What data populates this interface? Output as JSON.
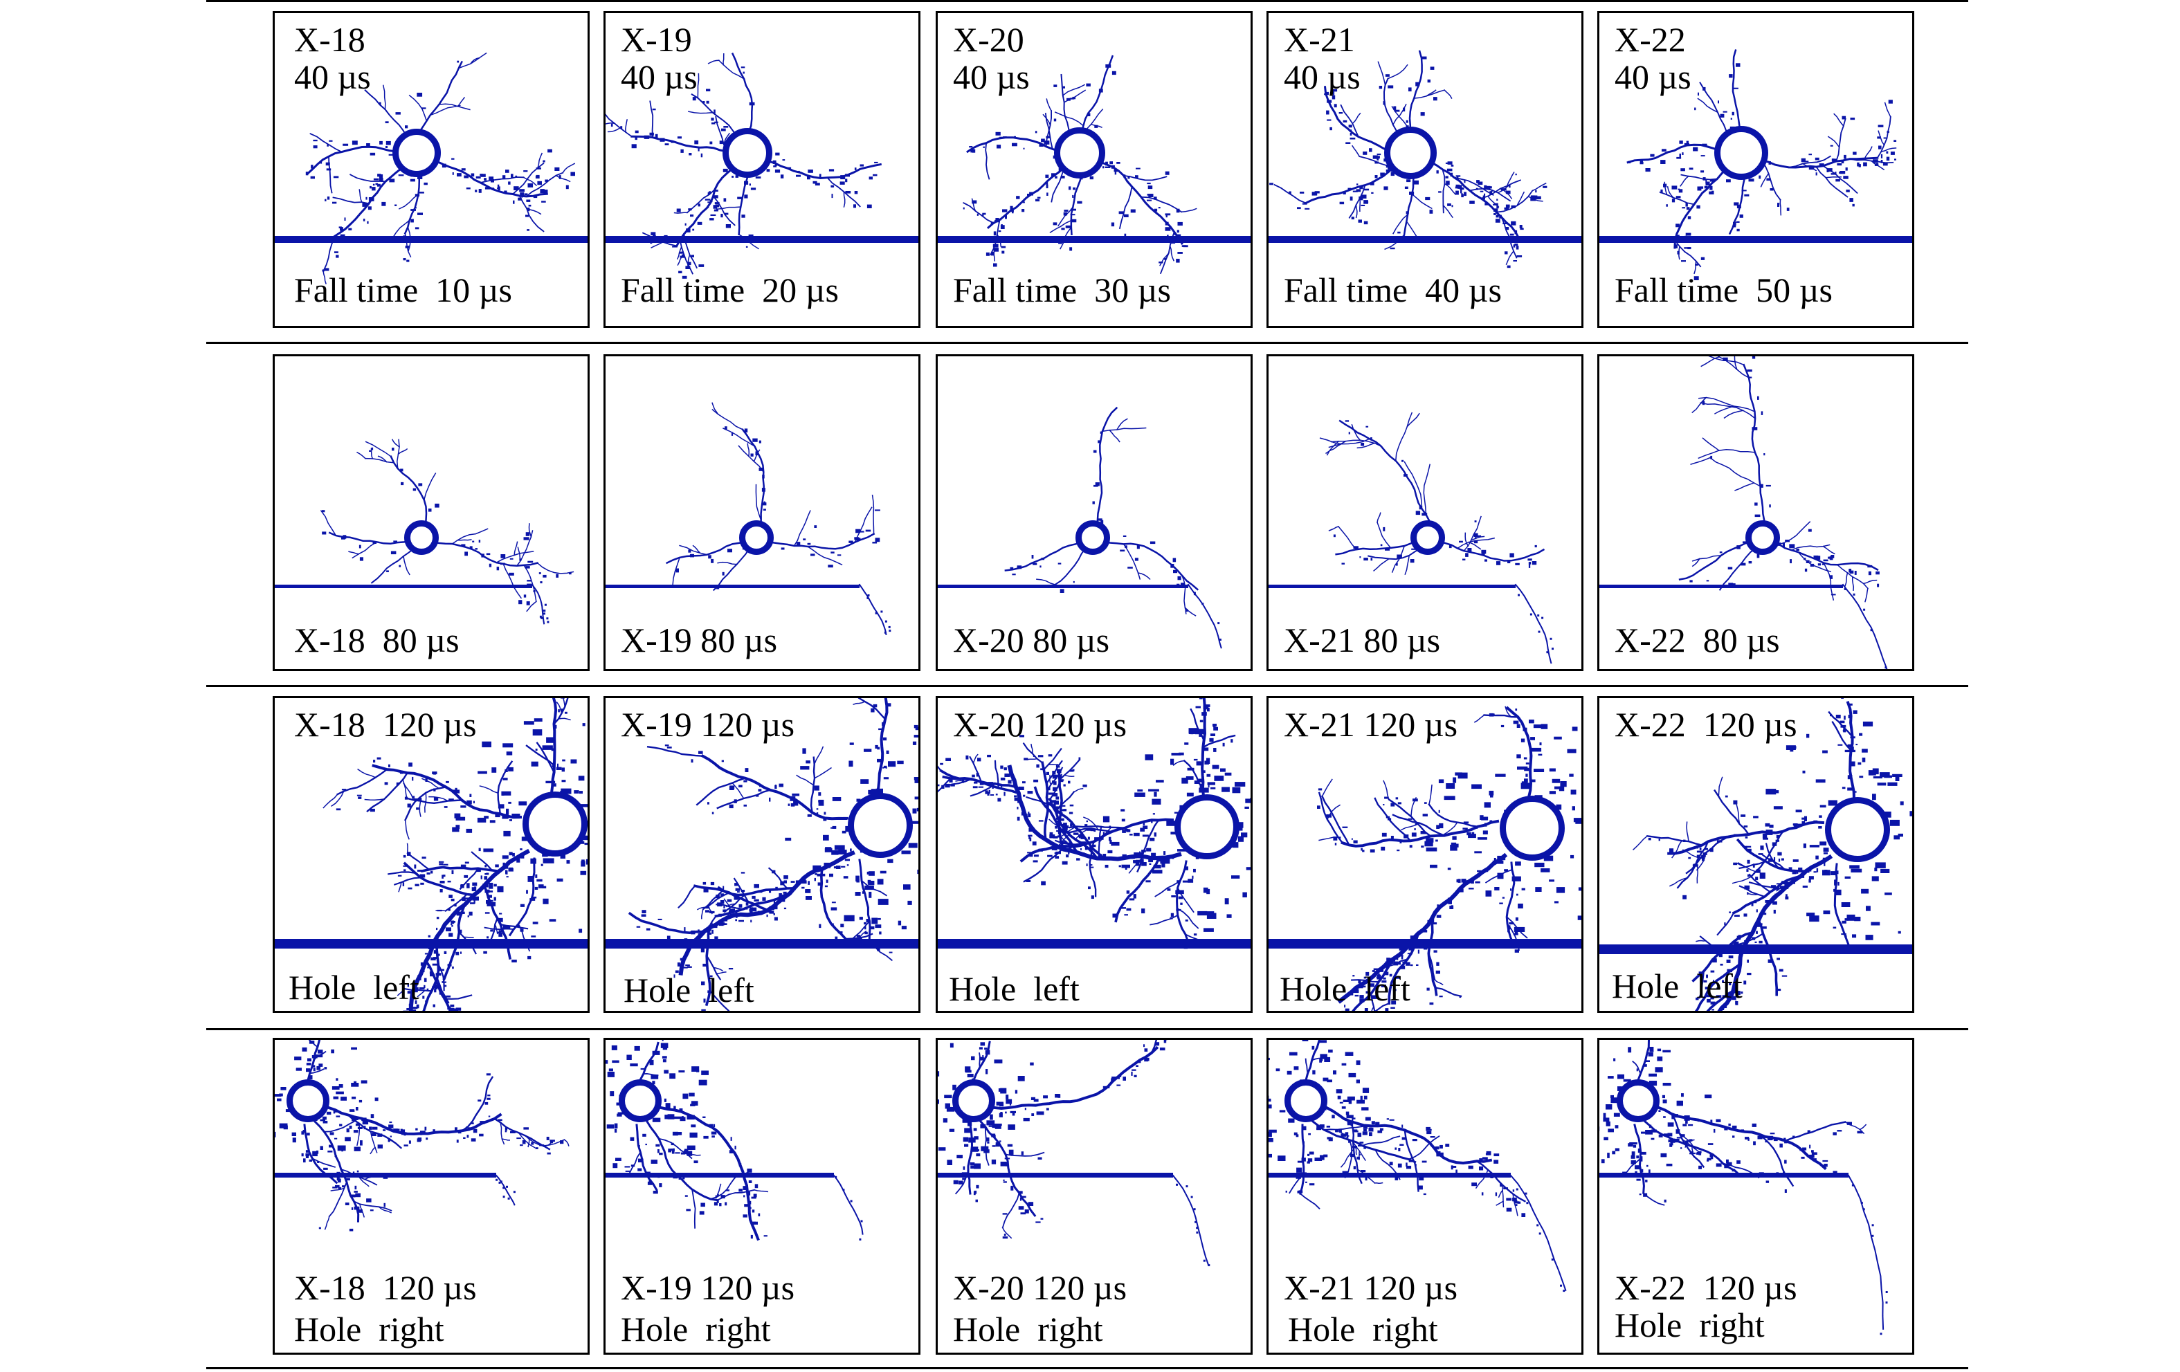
{
  "accent_color": "#0a14a8",
  "rows": [
    {
      "kind": "fall_time",
      "panels": [
        {
          "id": "X-18",
          "time": "40 µs",
          "caption": "Fall time  10 µs"
        },
        {
          "id": "X-19",
          "time": "40 µs",
          "caption": "Fall time  20 µs"
        },
        {
          "id": "X-20",
          "time": "40 µs",
          "caption": "Fall time  30 µs"
        },
        {
          "id": "X-21",
          "time": "40 µs",
          "caption": "Fall time  40 µs"
        },
        {
          "id": "X-22",
          "time": "40 µs",
          "caption": "Fall time  50 µs"
        }
      ]
    },
    {
      "kind": "at_80",
      "panels": [
        {
          "caption": "X-18  80 µs"
        },
        {
          "caption": "X-19 80 µs"
        },
        {
          "caption": "X-20 80 µs"
        },
        {
          "caption": "X-21 80 µs"
        },
        {
          "caption": "X-22  80 µs"
        }
      ]
    },
    {
      "kind": "hole_left",
      "panels": [
        {
          "title": "X-18  120 µs",
          "caption": "Hole  left"
        },
        {
          "title": "X-19 120 µs",
          "caption": "Hole  left"
        },
        {
          "title": "X-20 120 µs",
          "caption": "Hole  left"
        },
        {
          "title": "X-21 120 µs",
          "caption": "Hole  left"
        },
        {
          "title": "X-22  120 µs",
          "caption": "Hole  left"
        }
      ]
    },
    {
      "kind": "hole_right",
      "panels": [
        {
          "title": "X-18  120 µs",
          "caption": "Hole  right"
        },
        {
          "title": "X-19 120 µs",
          "caption": "Hole  right"
        },
        {
          "title": "X-20 120 µs",
          "caption": "Hole  right"
        },
        {
          "title": "X-21 120 µs",
          "caption": "Hole  right"
        },
        {
          "title": "X-22  120 µs",
          "caption": "Hole  right"
        }
      ]
    }
  ]
}
